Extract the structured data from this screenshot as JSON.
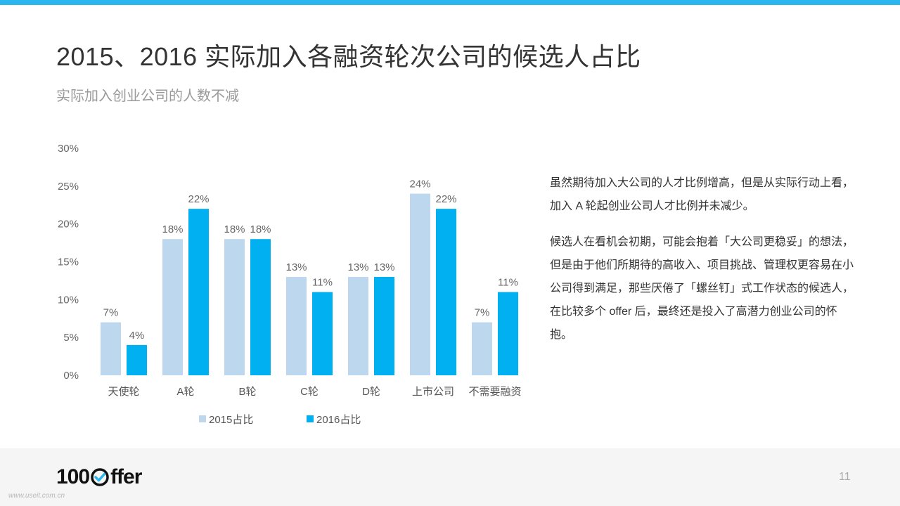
{
  "header": {
    "title": "2015、2016 实际加入各融资轮次公司的候选人占比",
    "subtitle": "实际加入创业公司的人数不减"
  },
  "colors": {
    "accent": "#29b7ee",
    "series_2015": "#bdd7ee",
    "series_2016": "#00b0f0",
    "footer_bg": "#f5f5f5"
  },
  "chart_data": {
    "type": "bar",
    "categories": [
      "天使轮",
      "A轮",
      "B轮",
      "C轮",
      "D轮",
      "上市公司",
      "不需要融资"
    ],
    "series": [
      {
        "name": "2015占比",
        "values": [
          7,
          18,
          18,
          13,
          13,
          24,
          7
        ],
        "color": "#bdd7ee"
      },
      {
        "name": "2016占比",
        "values": [
          4,
          22,
          18,
          11,
          13,
          22,
          11
        ],
        "color": "#00b0f0"
      }
    ],
    "value_labels": {
      "2015占比": [
        "7%",
        "18%",
        "18%",
        "13%",
        "13%",
        "24%",
        "7%"
      ],
      "2016占比": [
        "4%",
        "22%",
        "18%",
        "11%",
        "13%",
        "22%",
        "11%"
      ]
    },
    "yticks": [
      "0%",
      "5%",
      "10%",
      "15%",
      "20%",
      "25%",
      "30%"
    ],
    "ylim": [
      0,
      30
    ],
    "grid": false,
    "legend": "bottom"
  },
  "text_panel": {
    "paragraph1": "虽然期待加入大公司的人才比例增高，但是从实际行动上看，加入 A 轮起创业公司人才比例并未减少。",
    "paragraph2": "候选人在看机会初期，可能会抱着「大公司更稳妥」的想法，但是由于他们所期待的高收入、项目挑战、管理权更容易在小公司得到满足，那些厌倦了「螺丝钉」式工作状态的候选人，在比较多个 offer 后，最终还是投入了高潜力创业公司的怀抱。"
  },
  "footer": {
    "logo_left": "100",
    "logo_right": "ffer",
    "page_number": "11",
    "watermark": "www.useit.com.cn"
  }
}
